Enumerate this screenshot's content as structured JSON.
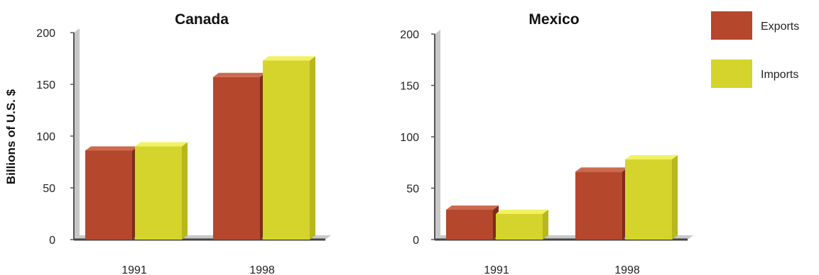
{
  "ylabel": "Billions of U.S. $",
  "legend": [
    {
      "label": "Exports",
      "color": "#b5472c"
    },
    {
      "label": "Imports",
      "color": "#d4d42c"
    }
  ],
  "colors": {
    "exports": "#b5472c",
    "imports": "#d4d42c",
    "exports_top": "#cc6a50",
    "imports_top": "#f2f260",
    "exports_side": "#7d2c19",
    "imports_side": "#b7b71e",
    "axis_shadow": "#c8c8c8"
  },
  "chart_data": [
    {
      "type": "bar",
      "title": "Canada",
      "categories": [
        "1991",
        "1998"
      ],
      "series": [
        {
          "name": "Exports",
          "values": [
            86,
            157
          ]
        },
        {
          "name": "Imports",
          "values": [
            90,
            173
          ]
        }
      ],
      "ylabel": "Billions of U.S. $",
      "ylim": [
        0,
        200
      ],
      "yticks": [
        "0",
        "50",
        "100",
        "150",
        "200"
      ],
      "grid": false,
      "legend": "right"
    },
    {
      "type": "bar",
      "title": "Mexico",
      "categories": [
        "1991",
        "1998"
      ],
      "series": [
        {
          "name": "Exports",
          "values": [
            29,
            66
          ]
        },
        {
          "name": "Imports",
          "values": [
            25,
            78
          ]
        }
      ],
      "ylim": [
        0,
        200
      ],
      "yticks": [
        "0",
        "50",
        "100",
        "150",
        "200"
      ],
      "grid": false,
      "legend": "right"
    }
  ]
}
